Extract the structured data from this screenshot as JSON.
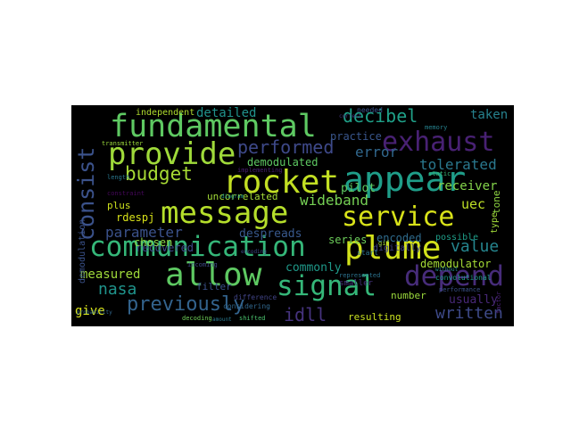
{
  "word_cloud": {
    "background": "#000000",
    "words": [
      {
        "text": "fundamental",
        "color": "#5ec962"
      },
      {
        "text": "provide",
        "color": "#9fda3a"
      },
      {
        "text": "rocket",
        "color": "#c2df23"
      },
      {
        "text": "appear",
        "color": "#1f9e89"
      },
      {
        "text": "message",
        "color": "#b5de2b"
      },
      {
        "text": "service",
        "color": "#d8e219"
      },
      {
        "text": "communication",
        "color": "#35b779"
      },
      {
        "text": "plume",
        "color": "#d2e21b"
      },
      {
        "text": "allow",
        "color": "#5ec962"
      },
      {
        "text": "signal",
        "color": "#35b779"
      },
      {
        "text": "depend",
        "color": "#472c7a"
      },
      {
        "text": "exhaust",
        "color": "#482173"
      },
      {
        "text": "consist",
        "color": "#3b528b"
      },
      {
        "text": "decibel",
        "color": "#1fa088"
      },
      {
        "text": "previously",
        "color": "#33638d"
      },
      {
        "text": "budget",
        "color": "#a8db34"
      },
      {
        "text": "performed",
        "color": "#3e4989"
      },
      {
        "text": "nasa",
        "color": "#1f948c"
      },
      {
        "text": "written",
        "color": "#3e4a89"
      },
      {
        "text": "detailed",
        "color": "#20928c"
      },
      {
        "text": "taken",
        "color": "#26828e"
      },
      {
        "text": "error",
        "color": "#31688e"
      },
      {
        "text": "tolerated",
        "color": "#2a788e"
      },
      {
        "text": "wideband",
        "color": "#75d054"
      },
      {
        "text": "parameter",
        "color": "#3b528b"
      },
      {
        "text": "measured",
        "color": "#9fda3a"
      },
      {
        "text": "commonly",
        "color": "#1f9a8a"
      },
      {
        "text": "value",
        "color": "#25858e"
      },
      {
        "text": "idll",
        "color": "#46337e"
      },
      {
        "text": "give",
        "color": "#d8e219"
      },
      {
        "text": "uec",
        "color": "#bddf26"
      },
      {
        "text": "receiver",
        "color": "#84d44b"
      },
      {
        "text": "pilot",
        "color": "#5ec962"
      },
      {
        "text": "demodulator",
        "color": "#a5db36"
      },
      {
        "text": "resulting",
        "color": "#c8e020"
      },
      {
        "text": "usually",
        "color": "#482878"
      },
      {
        "text": "demodulated",
        "color": "#5ec962"
      },
      {
        "text": "uncorrelated",
        "color": "#a2da37"
      },
      {
        "text": "recovered",
        "color": "#3e4989"
      },
      {
        "text": "rdespj",
        "color": "#d8e219"
      },
      {
        "text": "despreads",
        "color": "#38588c"
      },
      {
        "text": "encoded",
        "color": "#2f6c8e"
      },
      {
        "text": "chosen",
        "color": "#8bd646"
      },
      {
        "text": "series",
        "color": "#6ccd5a"
      },
      {
        "text": "plus",
        "color": "#cde11d"
      },
      {
        "text": "independent",
        "color": "#b0dd2f"
      },
      {
        "text": "practice",
        "color": "#39568c"
      },
      {
        "text": "filter",
        "color": "#3b528b"
      },
      {
        "text": "number",
        "color": "#9bd93c"
      },
      {
        "text": "possible",
        "color": "#1f9e89"
      },
      {
        "text": "tone",
        "color": "#90d743"
      },
      {
        "text": "type",
        "color": "#a0da39"
      },
      {
        "text": "demodulation",
        "color": "#3b528b"
      },
      {
        "text": "digitally",
        "color": "#404688"
      },
      {
        "text": "considering",
        "color": "#31688e"
      },
      {
        "text": "difference",
        "color": "#414487"
      },
      {
        "text": "smaller",
        "color": "#46327e"
      },
      {
        "text": "needed",
        "color": "#3b528b"
      },
      {
        "text": "start",
        "color": "#2c738e"
      },
      {
        "text": "convolutional",
        "color": "#1f9e89"
      },
      {
        "text": "transmitter",
        "color": "#9bd93c"
      },
      {
        "text": "implementing",
        "color": "#481f70"
      },
      {
        "text": "incoming",
        "color": "#3e4a89"
      },
      {
        "text": "decoding",
        "color": "#6ece58"
      },
      {
        "text": "shifted",
        "color": "#4ac16d"
      },
      {
        "text": "length",
        "color": "#2a788e"
      },
      {
        "text": "constraint",
        "color": "#46085c"
      },
      {
        "text": "memory",
        "color": "#26828e"
      },
      {
        "text": "static",
        "color": "#35b779"
      },
      {
        "text": "represented",
        "color": "#2c728e"
      },
      {
        "text": "gif",
        "color": "#9fda3a"
      },
      {
        "text": "performance",
        "color": "#3b528b"
      },
      {
        "text": "factor",
        "color": "#482173"
      },
      {
        "text": "probability",
        "color": "#31688e"
      },
      {
        "text": "diagram",
        "color": "#1f9a8a"
      },
      {
        "text": "encoding",
        "color": "#3e4989"
      },
      {
        "text": "without",
        "color": "#25858e"
      },
      {
        "text": "correct",
        "color": "#46337e"
      },
      {
        "text": "amount",
        "color": "#2a788e"
      }
    ]
  }
}
